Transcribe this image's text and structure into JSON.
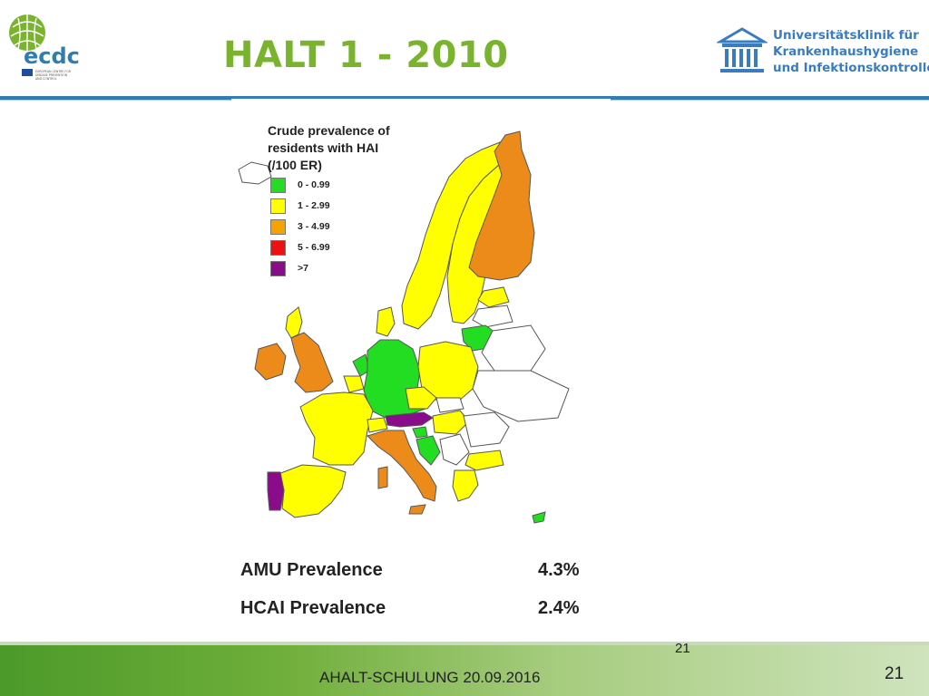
{
  "title": "HALT 1 - 2010",
  "header": {
    "ecdc_logo_text": "ecdc",
    "ecdc_small_text": "EUROPEAN CENTRE FOR DISEASE PREVENTION AND CONTROL",
    "institution_line1": "Universitätsklinik für",
    "institution_line2": "Krankenhaushygiene",
    "institution_line3": "und Infektionskontrolle"
  },
  "map": {
    "legend_title_line1": "Crude prevalence of",
    "legend_title_line2": "residents with HAI",
    "legend_title_line3": "(/100 ER)",
    "legend": [
      {
        "label": "0 - 0.99",
        "color": "#22dd22"
      },
      {
        "label": "1 - 2.99",
        "color": "#ffff00"
      },
      {
        "label": "3 - 4.99",
        "color": "#f4a300"
      },
      {
        "label": "5 - 6.99",
        "color": "#ee1111"
      },
      {
        "label": ">7",
        "color": "#8a0c8a"
      }
    ],
    "colors": {
      "green": "#22dd22",
      "yellow": "#ffff00",
      "orange": "#ed8b1a",
      "purple": "#8a0c8a",
      "none": "#ffffff",
      "border": "#555555"
    }
  },
  "stats": [
    {
      "label": "AMU Prevalence",
      "value": "4.3%"
    },
    {
      "label": "HCAI Prevalence",
      "value": "2.4%"
    }
  ],
  "footer": {
    "text": "AHALT-SCHULUNG 20.09.2016",
    "page_top": "21",
    "page_bottom": "21"
  }
}
